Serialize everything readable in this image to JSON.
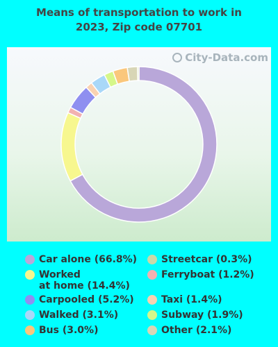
{
  "title_line1": "Means of transportation to work in",
  "title_line2": "2023, Zip code 07701",
  "watermark": "City-Data.com",
  "chart_data": {
    "type": "pie",
    "series": [
      {
        "name": "Car alone",
        "value": 66.8,
        "label": "Car alone (66.8%)",
        "color": "#b9a7d9"
      },
      {
        "name": "Worked at home",
        "value": 14.4,
        "label": "Worked\nat home (14.4%)",
        "color": "#f7f78f"
      },
      {
        "name": "Ferryboat",
        "value": 1.2,
        "label": "Ferryboat (1.2%)",
        "color": "#f2b1b1"
      },
      {
        "name": "Carpooled",
        "value": 5.2,
        "label": "Carpooled (5.2%)",
        "color": "#8f8ff0"
      },
      {
        "name": "Taxi",
        "value": 1.4,
        "label": "Taxi (1.4%)",
        "color": "#f9d2b1"
      },
      {
        "name": "Walked",
        "value": 3.1,
        "label": "Walked (3.1%)",
        "color": "#a9d8f8"
      },
      {
        "name": "Subway",
        "value": 1.9,
        "label": "Subway (1.9%)",
        "color": "#d6f78a"
      },
      {
        "name": "Bus",
        "value": 3.0,
        "label": "Bus (3.0%)",
        "color": "#fac77c"
      },
      {
        "name": "Other",
        "value": 2.1,
        "label": "Other (2.1%)",
        "color": "#d8d6b6"
      },
      {
        "name": "Streetcar",
        "value": 0.3,
        "label": "Streetcar (0.3%)",
        "color": "#c9d9a8"
      }
    ],
    "legend_left": [
      "Car alone",
      "Worked at home",
      "Carpooled",
      "Walked",
      "Bus"
    ],
    "legend_right": [
      "Streetcar",
      "Ferryboat",
      "Taxi",
      "Subway",
      "Other"
    ]
  }
}
